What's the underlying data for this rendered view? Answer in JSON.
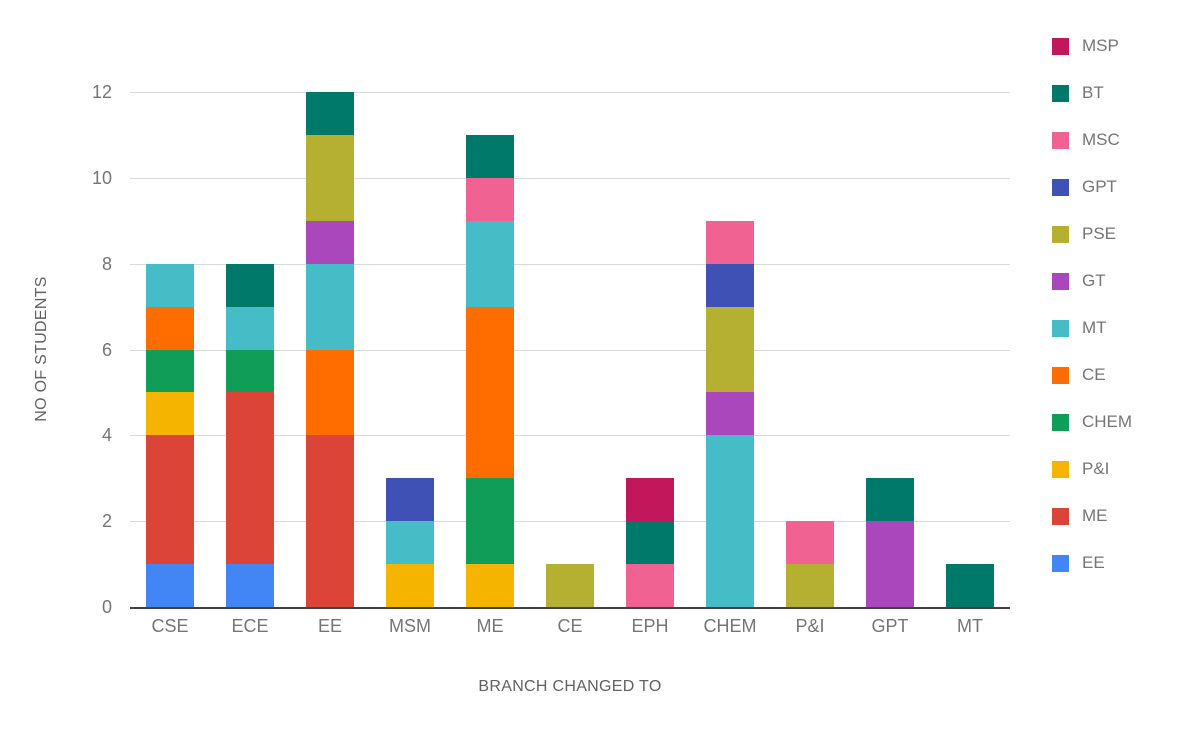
{
  "chart_data": {
    "type": "bar",
    "stacked": true,
    "title": "",
    "xlabel": "BRANCH CHANGED TO",
    "ylabel": "NO OF STUDENTS",
    "ylim": [
      0,
      12
    ],
    "yticks": [
      0,
      2,
      4,
      6,
      8,
      10,
      12
    ],
    "grid": true,
    "legend_position": "right",
    "categories": [
      "CSE",
      "ECE",
      "EE",
      "MSM",
      "ME",
      "CE",
      "EPH",
      "CHEM",
      "P&I",
      "GPT",
      "MT"
    ],
    "series": [
      {
        "name": "EE",
        "color": "#4285F4",
        "values": [
          1,
          1,
          0,
          0,
          0,
          0,
          0,
          0,
          0,
          0,
          0
        ]
      },
      {
        "name": "ME",
        "color": "#DB4437",
        "values": [
          3,
          4,
          4,
          0,
          0,
          0,
          0,
          0,
          0,
          0,
          0
        ]
      },
      {
        "name": "P&I",
        "color": "#F4B400",
        "values": [
          1,
          0,
          0,
          1,
          1,
          0,
          0,
          0,
          0,
          0,
          0
        ]
      },
      {
        "name": "CHEM",
        "color": "#0F9D58",
        "values": [
          1,
          1,
          0,
          0,
          2,
          0,
          0,
          0,
          0,
          0,
          0
        ]
      },
      {
        "name": "CE",
        "color": "#FF6D00",
        "values": [
          1,
          0,
          2,
          0,
          4,
          0,
          0,
          0,
          0,
          0,
          0
        ]
      },
      {
        "name": "MT",
        "color": "#46BDC6",
        "values": [
          1,
          1,
          2,
          1,
          2,
          0,
          0,
          4,
          0,
          0,
          0
        ]
      },
      {
        "name": "GT",
        "color": "#AB47BC",
        "values": [
          0,
          0,
          1,
          0,
          0,
          0,
          0,
          1,
          0,
          2,
          0
        ]
      },
      {
        "name": "PSE",
        "color": "#B5B031",
        "values": [
          0,
          0,
          2,
          0,
          0,
          1,
          0,
          2,
          1,
          0,
          0
        ]
      },
      {
        "name": "GPT",
        "color": "#3F51B5",
        "values": [
          0,
          0,
          0,
          1,
          0,
          0,
          0,
          1,
          0,
          0,
          0
        ]
      },
      {
        "name": "MSC",
        "color": "#F06292",
        "values": [
          0,
          0,
          0,
          0,
          1,
          0,
          1,
          1,
          1,
          0,
          0
        ]
      },
      {
        "name": "BT",
        "color": "#00796B",
        "values": [
          0,
          1,
          1,
          0,
          1,
          0,
          1,
          0,
          0,
          1,
          1
        ]
      },
      {
        "name": "MSP",
        "color": "#C2185B",
        "values": [
          0,
          0,
          0,
          0,
          0,
          0,
          1,
          0,
          0,
          0,
          0
        ]
      }
    ],
    "legend_order": [
      "MSP",
      "BT",
      "MSC",
      "GPT",
      "PSE",
      "GT",
      "MT",
      "CE",
      "CHEM",
      "P&I",
      "ME",
      "EE"
    ]
  }
}
